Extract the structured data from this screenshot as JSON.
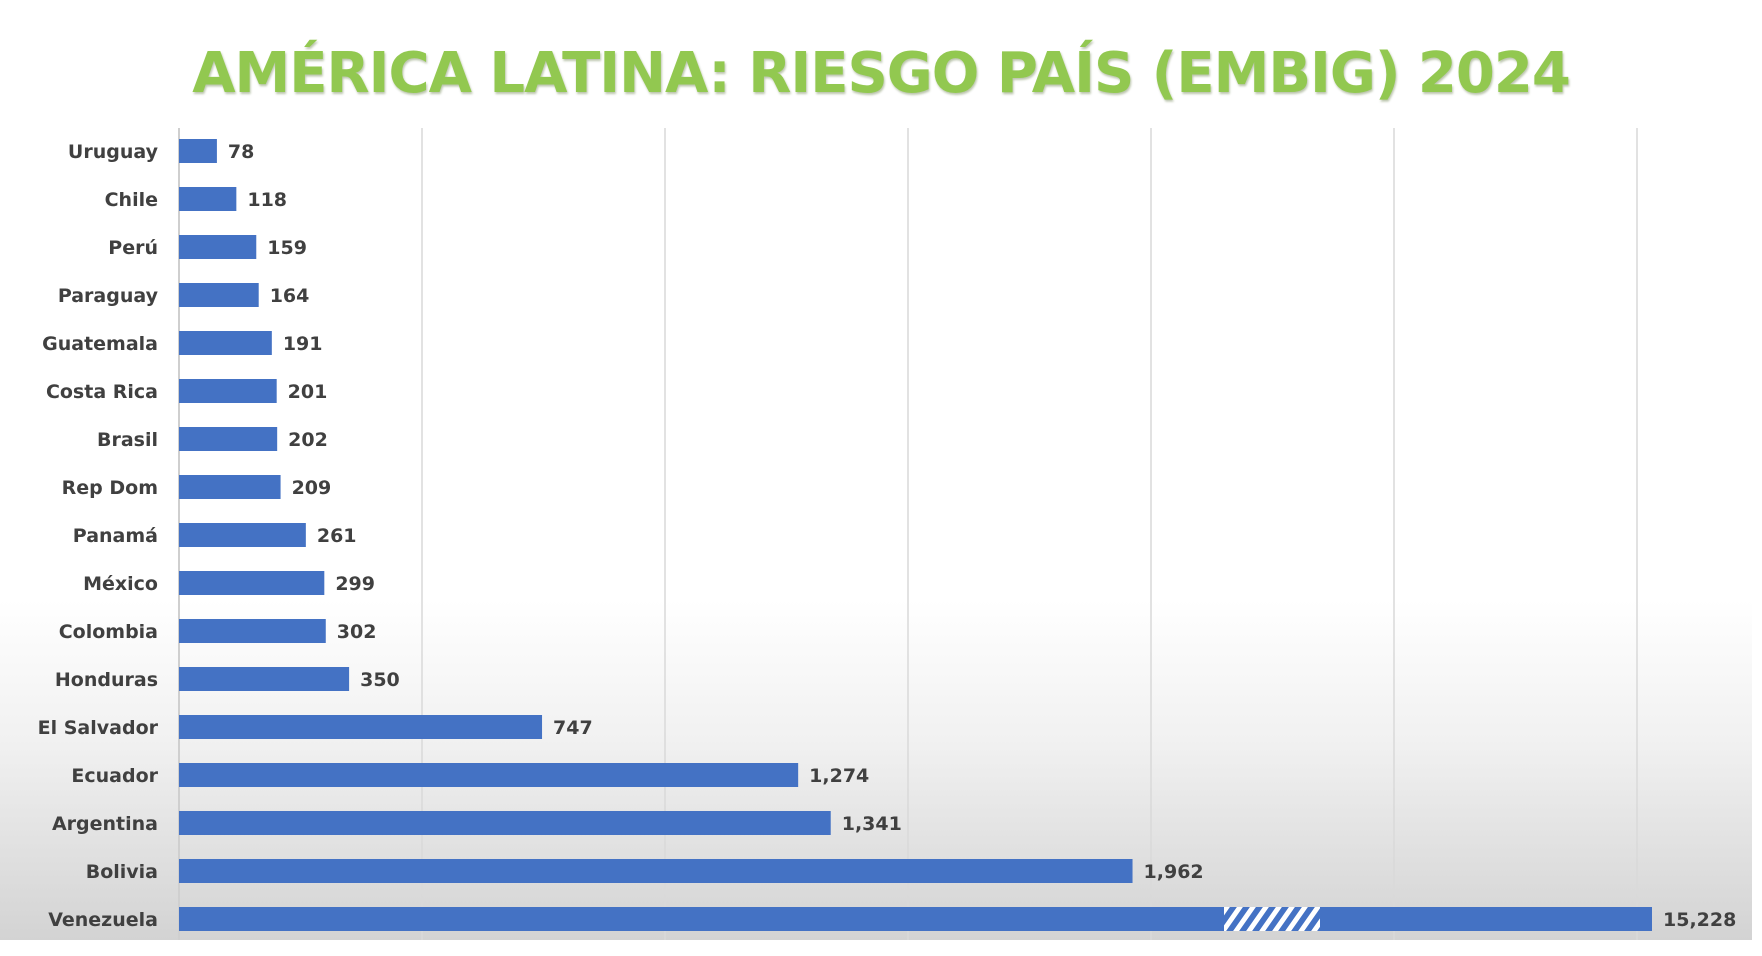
{
  "chart_data": {
    "type": "bar",
    "orientation": "horizontal",
    "title": "AMÉRICA LATINA: RIESGO PAÍS (EMBIG) 2024",
    "categories": [
      "Uruguay",
      "Chile",
      "Perú",
      "Paraguay",
      "Guatemala",
      "Costa Rica",
      "Brasil",
      "Rep Dom",
      "Panamá",
      "México",
      "Colombia",
      "Honduras",
      "El Salvador",
      "Ecuador",
      "Argentina",
      "Bolivia",
      "Venezuela"
    ],
    "values": [
      78,
      118,
      159,
      164,
      191,
      201,
      202,
      209,
      261,
      299,
      302,
      350,
      747,
      1274,
      1341,
      1962,
      15228
    ],
    "value_labels": [
      "78",
      "118",
      "159",
      "164",
      "191",
      "201",
      "202",
      "209",
      "261",
      "299",
      "302",
      "350",
      "747",
      "1,274",
      "1,341",
      "1,962",
      "15,228"
    ],
    "broken_axis_bar": "Venezuela",
    "xlim": [
      0,
      3000
    ],
    "x_gridlines": [
      500,
      1000,
      1500,
      2000,
      2500,
      3000
    ],
    "x_tick_labels_visible": false,
    "grid": true,
    "legend": "none",
    "xlabel": "",
    "ylabel": "",
    "colors": {
      "bar": "#4472c4",
      "title": "#92c850",
      "label_text": "#404040",
      "gridline": "#d9d9d9"
    }
  }
}
